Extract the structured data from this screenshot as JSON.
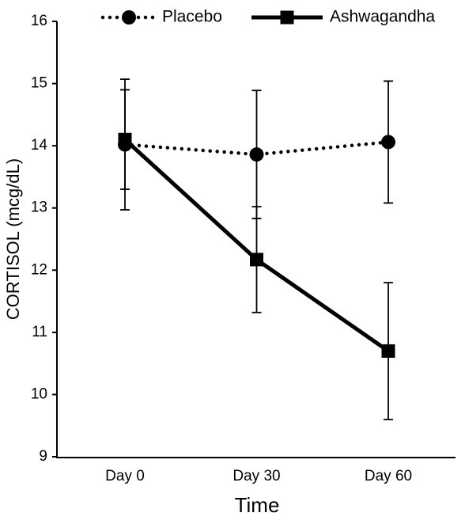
{
  "chart_data": {
    "type": "line",
    "x_label": "Time",
    "y_label": "CORTISOL (mcg/dL)",
    "categories": [
      "Day 0",
      "Day 30",
      "Day 60"
    ],
    "series": [
      {
        "name": "Placebo",
        "color": "#000000",
        "line_style": "dotted",
        "marker": "circle",
        "values": [
          14.02,
          13.86,
          14.06
        ],
        "errors": [
          1.05,
          1.03,
          0.98
        ]
      },
      {
        "name": "Ashwagandha",
        "color": "#000000",
        "line_style": "solid",
        "marker": "square",
        "values": [
          14.1,
          12.17,
          10.7
        ],
        "errors": [
          0.8,
          0.85,
          1.1
        ]
      }
    ],
    "ylim": [
      9,
      16
    ],
    "yticks": [
      9,
      10,
      11,
      12,
      13,
      14,
      15,
      16
    ]
  }
}
